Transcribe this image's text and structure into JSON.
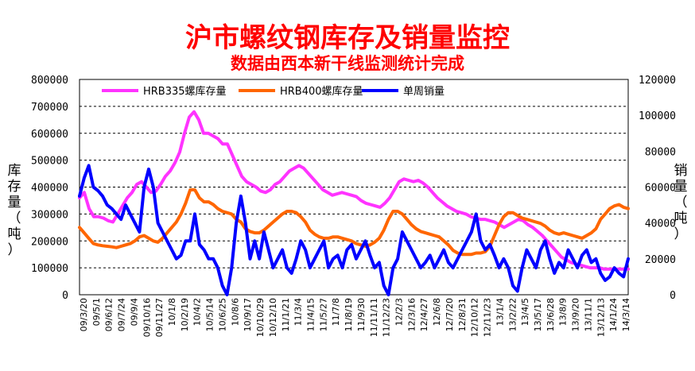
{
  "title": "沪市螺纹钢库存及销量监控",
  "subtitle": "数据由西本新干线监测统计完成",
  "chart_data": {
    "type": "line",
    "title": "沪市螺纹钢库存及销量监控",
    "subtitle": "数据由西本新干线监测统计完成",
    "ylabel_left": "库存量（吨）",
    "ylabel_right": "销量（吨）",
    "ylim_left": [
      0,
      800000
    ],
    "ylim_right": [
      0,
      120000
    ],
    "yticks_left": [
      "0",
      "100000",
      "200000",
      "300000",
      "400000",
      "500000",
      "600000",
      "700000",
      "800000"
    ],
    "yticks_right": [
      "0",
      "20000",
      "40000",
      "60000",
      "80000",
      "100000",
      "120000"
    ],
    "grid": "horizontal dashed",
    "legend_position": "top",
    "x_labels": [
      "09/3/20",
      "09/5/1",
      "09/6/12",
      "09/7/24",
      "09/9/4",
      "09/10/16",
      "09/11/27",
      "10/1/8",
      "10/2/19",
      "10/4/2",
      "10/5/14",
      "10/6/25",
      "10/8/6",
      "10/9/17",
      "10/10/29",
      "10/12/10",
      "11/1/21",
      "11/3/4",
      "11/4/15",
      "11/5/27",
      "11/7/8",
      "11/8/19",
      "11/9/30",
      "11/11/11",
      "11/12/23",
      "12/2/3",
      "12/3/16",
      "12/4/27",
      "12/6/8",
      "12/7/20",
      "12/8/31",
      "12/10/12",
      "12/11/23",
      "13/1/4",
      "13/2/22",
      "13/4/5",
      "13/5/17",
      "13/6/28",
      "13/8/9",
      "13/9/20",
      "13/11/1",
      "13/12/13",
      "14/1/24",
      "14/3/14"
    ],
    "series": [
      {
        "name": "HRB335螺库存量",
        "axis": "left",
        "color": "#ff33ff",
        "values": [
          360000,
          380000,
          320000,
          290000,
          290000,
          285000,
          275000,
          270000,
          300000,
          330000,
          360000,
          380000,
          410000,
          420000,
          400000,
          380000,
          385000,
          410000,
          440000,
          460000,
          490000,
          530000,
          600000,
          660000,
          680000,
          650000,
          600000,
          600000,
          590000,
          580000,
          560000,
          560000,
          520000,
          480000,
          440000,
          420000,
          410000,
          400000,
          385000,
          380000,
          390000,
          410000,
          420000,
          440000,
          460000,
          470000,
          480000,
          470000,
          450000,
          430000,
          410000,
          390000,
          380000,
          370000,
          375000,
          380000,
          375000,
          370000,
          365000,
          350000,
          340000,
          335000,
          330000,
          325000,
          340000,
          360000,
          390000,
          420000,
          430000,
          425000,
          420000,
          425000,
          415000,
          400000,
          380000,
          360000,
          345000,
          330000,
          320000,
          310000,
          305000,
          300000,
          290000,
          285000,
          280000,
          280000,
          275000,
          270000,
          260000,
          250000,
          260000,
          270000,
          280000,
          275000,
          260000,
          250000,
          235000,
          220000,
          200000,
          180000,
          160000,
          140000,
          130000,
          120000,
          115000,
          110000,
          105000,
          100000,
          100000,
          100000,
          95000,
          95000,
          95000,
          95000,
          95000,
          95000
        ]
      },
      {
        "name": "HRB400螺库存量",
        "axis": "left",
        "color": "#ff6600",
        "values": [
          250000,
          230000,
          210000,
          190000,
          185000,
          182000,
          180000,
          178000,
          175000,
          180000,
          185000,
          190000,
          200000,
          215000,
          220000,
          210000,
          200000,
          195000,
          210000,
          230000,
          250000,
          270000,
          300000,
          340000,
          390000,
          390000,
          360000,
          345000,
          345000,
          335000,
          320000,
          310000,
          305000,
          300000,
          280000,
          270000,
          245000,
          235000,
          230000,
          230000,
          240000,
          255000,
          270000,
          285000,
          300000,
          310000,
          310000,
          305000,
          290000,
          270000,
          240000,
          225000,
          215000,
          210000,
          210000,
          215000,
          215000,
          210000,
          205000,
          200000,
          190000,
          185000,
          180000,
          185000,
          195000,
          210000,
          240000,
          280000,
          310000,
          310000,
          300000,
          280000,
          260000,
          245000,
          235000,
          230000,
          225000,
          220000,
          215000,
          200000,
          185000,
          165000,
          155000,
          150000,
          150000,
          150000,
          155000,
          155000,
          160000,
          180000,
          220000,
          260000,
          290000,
          305000,
          305000,
          295000,
          285000,
          280000,
          275000,
          270000,
          265000,
          255000,
          240000,
          230000,
          225000,
          230000,
          225000,
          220000,
          215000,
          210000,
          220000,
          230000,
          245000,
          280000,
          300000,
          320000,
          330000,
          335000,
          325000,
          320000
        ]
      },
      {
        "name": "单周销量",
        "axis": "right",
        "color": "#0000ff",
        "values": [
          55000,
          65000,
          72000,
          60000,
          58000,
          55000,
          50000,
          48000,
          45000,
          42000,
          50000,
          45000,
          40000,
          35000,
          60000,
          70000,
          60000,
          40000,
          35000,
          30000,
          25000,
          20000,
          22000,
          30000,
          30000,
          45000,
          28000,
          25000,
          20000,
          20000,
          15000,
          5000,
          0,
          15000,
          40000,
          55000,
          40000,
          20000,
          30000,
          20000,
          35000,
          25000,
          15000,
          20000,
          25000,
          15000,
          12000,
          20000,
          30000,
          25000,
          15000,
          20000,
          25000,
          30000,
          15000,
          20000,
          22000,
          15000,
          25000,
          28000,
          20000,
          25000,
          30000,
          22000,
          15000,
          18000,
          5000,
          0,
          15000,
          20000,
          35000,
          30000,
          25000,
          20000,
          15000,
          18000,
          22000,
          15000,
          20000,
          25000,
          18000,
          15000,
          20000,
          25000,
          30000,
          35000,
          45000,
          30000,
          25000,
          28000,
          22000,
          15000,
          20000,
          15000,
          5000,
          2000,
          15000,
          25000,
          20000,
          15000,
          25000,
          30000,
          20000,
          12000,
          18000,
          15000,
          25000,
          20000,
          15000,
          22000,
          25000,
          18000,
          20000,
          12000,
          8000,
          10000,
          15000,
          12000,
          10000,
          20000
        ]
      }
    ]
  }
}
